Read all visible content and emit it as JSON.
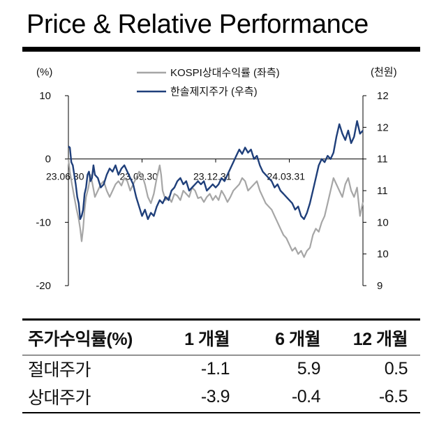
{
  "header": {
    "title": "Price & Relative Performance"
  },
  "chart_data": {
    "type": "line",
    "left_axis": {
      "unit": "(%)",
      "range": [
        -20,
        10
      ],
      "ticks": [
        10,
        0,
        -10,
        -20
      ],
      "tick_labels": [
        "10",
        "0",
        "-10",
        "-20"
      ]
    },
    "right_axis": {
      "unit": "(천원)",
      "range": [
        9,
        12
      ],
      "tick_labels": [
        "12",
        "12",
        "11",
        "11",
        "10",
        "10",
        "9"
      ]
    },
    "x_ticks": [
      "23.06.30",
      "23.09.30",
      "23.12.31",
      "24.03.31"
    ],
    "x_tick_positions": [
      0,
      0.25,
      0.5,
      0.75
    ],
    "legend": [
      "KOSPI상대수익률 (좌측)",
      "한솔제지주가 (우측)"
    ],
    "series": [
      {
        "name": "KOSPI상대수익률 (좌측)",
        "axis": "left",
        "color": "#a6a6a6",
        "points": [
          [
            0,
            0
          ],
          [
            0.005,
            -2
          ],
          [
            0.012,
            -4
          ],
          [
            0.02,
            -6
          ],
          [
            0.028,
            -8
          ],
          [
            0.035,
            -9.5
          ],
          [
            0.04,
            -11
          ],
          [
            0.045,
            -13
          ],
          [
            0.05,
            -11
          ],
          [
            0.055,
            -8
          ],
          [
            0.06,
            -6
          ],
          [
            0.068,
            -4.5
          ],
          [
            0.075,
            -2.5
          ],
          [
            0.082,
            -4
          ],
          [
            0.09,
            -6
          ],
          [
            0.1,
            -5
          ],
          [
            0.11,
            -4
          ],
          [
            0.12,
            -3.5
          ],
          [
            0.13,
            -5
          ],
          [
            0.14,
            -6
          ],
          [
            0.15,
            -5
          ],
          [
            0.16,
            -4
          ],
          [
            0.17,
            -3.5
          ],
          [
            0.18,
            -4.2
          ],
          [
            0.19,
            -3
          ],
          [
            0.2,
            -3.5
          ],
          [
            0.21,
            -5
          ],
          [
            0.22,
            -4
          ],
          [
            0.23,
            -3
          ],
          [
            0.24,
            -2
          ],
          [
            0.25,
            -2.5
          ],
          [
            0.26,
            -4
          ],
          [
            0.27,
            -6
          ],
          [
            0.28,
            -7
          ],
          [
            0.29,
            -5.5
          ],
          [
            0.3,
            -3
          ],
          [
            0.31,
            -1
          ],
          [
            0.315,
            -2.5
          ],
          [
            0.32,
            -5
          ],
          [
            0.33,
            -6.5
          ],
          [
            0.34,
            -6
          ],
          [
            0.35,
            -6.8
          ],
          [
            0.36,
            -5.5
          ],
          [
            0.37,
            -5.8
          ],
          [
            0.38,
            -6.5
          ],
          [
            0.39,
            -5
          ],
          [
            0.4,
            -5.5
          ],
          [
            0.41,
            -6
          ],
          [
            0.42,
            -4.5
          ],
          [
            0.43,
            -5
          ],
          [
            0.44,
            -6.2
          ],
          [
            0.45,
            -6
          ],
          [
            0.46,
            -6.8
          ],
          [
            0.47,
            -6
          ],
          [
            0.48,
            -5.5
          ],
          [
            0.49,
            -6.5
          ],
          [
            0.5,
            -5.8
          ],
          [
            0.51,
            -6.5
          ],
          [
            0.52,
            -5
          ],
          [
            0.53,
            -5.8
          ],
          [
            0.54,
            -6.8
          ],
          [
            0.55,
            -6
          ],
          [
            0.56,
            -5
          ],
          [
            0.57,
            -4.5
          ],
          [
            0.58,
            -4
          ],
          [
            0.59,
            -3
          ],
          [
            0.6,
            -3.5
          ],
          [
            0.61,
            -5
          ],
          [
            0.62,
            -4.5
          ],
          [
            0.63,
            -4
          ],
          [
            0.64,
            -3.5
          ],
          [
            0.65,
            -5
          ],
          [
            0.66,
            -6
          ],
          [
            0.67,
            -7
          ],
          [
            0.68,
            -7.5
          ],
          [
            0.69,
            -8
          ],
          [
            0.7,
            -9
          ],
          [
            0.71,
            -10
          ],
          [
            0.72,
            -11
          ],
          [
            0.73,
            -12
          ],
          [
            0.74,
            -12.5
          ],
          [
            0.75,
            -13.5
          ],
          [
            0.76,
            -14.5
          ],
          [
            0.77,
            -14
          ],
          [
            0.78,
            -15
          ],
          [
            0.79,
            -14.5
          ],
          [
            0.8,
            -15.5
          ],
          [
            0.81,
            -14.5
          ],
          [
            0.82,
            -14
          ],
          [
            0.83,
            -12
          ],
          [
            0.84,
            -11
          ],
          [
            0.85,
            -11.5
          ],
          [
            0.86,
            -10
          ],
          [
            0.87,
            -9
          ],
          [
            0.88,
            -7
          ],
          [
            0.89,
            -5
          ],
          [
            0.9,
            -3
          ],
          [
            0.91,
            -4
          ],
          [
            0.92,
            -5
          ],
          [
            0.93,
            -6
          ],
          [
            0.94,
            -4
          ],
          [
            0.95,
            -3
          ],
          [
            0.96,
            -5
          ],
          [
            0.97,
            -6
          ],
          [
            0.98,
            -4.5
          ],
          [
            0.99,
            -9
          ],
          [
            1,
            -6.8
          ]
        ]
      },
      {
        "name": "한솔제지주가 (우측)",
        "axis": "right",
        "color": "#1f3f7a",
        "points": [
          [
            0,
            11.2
          ],
          [
            0.005,
            11.18
          ],
          [
            0.01,
            10.95
          ],
          [
            0.015,
            10.9
          ],
          [
            0.02,
            10.75
          ],
          [
            0.025,
            10.6
          ],
          [
            0.03,
            10.4
          ],
          [
            0.035,
            10.3
          ],
          [
            0.04,
            10.05
          ],
          [
            0.045,
            10.1
          ],
          [
            0.05,
            10.2
          ],
          [
            0.055,
            10.45
          ],
          [
            0.06,
            10.55
          ],
          [
            0.065,
            10.75
          ],
          [
            0.07,
            10.8
          ],
          [
            0.075,
            10.65
          ],
          [
            0.08,
            10.7
          ],
          [
            0.085,
            10.9
          ],
          [
            0.09,
            10.75
          ],
          [
            0.1,
            10.7
          ],
          [
            0.11,
            10.55
          ],
          [
            0.12,
            10.6
          ],
          [
            0.13,
            10.75
          ],
          [
            0.14,
            10.85
          ],
          [
            0.15,
            10.8
          ],
          [
            0.16,
            10.9
          ],
          [
            0.17,
            10.75
          ],
          [
            0.18,
            10.85
          ],
          [
            0.19,
            10.9
          ],
          [
            0.2,
            10.8
          ],
          [
            0.21,
            10.7
          ],
          [
            0.22,
            10.6
          ],
          [
            0.23,
            10.4
          ],
          [
            0.24,
            10.25
          ],
          [
            0.25,
            10.1
          ],
          [
            0.26,
            10.2
          ],
          [
            0.27,
            10.05
          ],
          [
            0.28,
            10.15
          ],
          [
            0.29,
            10.1
          ],
          [
            0.3,
            10.25
          ],
          [
            0.31,
            10.35
          ],
          [
            0.32,
            10.3
          ],
          [
            0.33,
            10.4
          ],
          [
            0.34,
            10.35
          ],
          [
            0.35,
            10.5
          ],
          [
            0.36,
            10.55
          ],
          [
            0.37,
            10.65
          ],
          [
            0.38,
            10.7
          ],
          [
            0.39,
            10.6
          ],
          [
            0.4,
            10.65
          ],
          [
            0.41,
            10.5
          ],
          [
            0.42,
            10.55
          ],
          [
            0.43,
            10.6
          ],
          [
            0.44,
            10.65
          ],
          [
            0.45,
            10.6
          ],
          [
            0.46,
            10.65
          ],
          [
            0.47,
            10.5
          ],
          [
            0.48,
            10.55
          ],
          [
            0.49,
            10.6
          ],
          [
            0.5,
            10.55
          ],
          [
            0.51,
            10.6
          ],
          [
            0.52,
            10.7
          ],
          [
            0.53,
            10.65
          ],
          [
            0.54,
            10.75
          ],
          [
            0.55,
            10.85
          ],
          [
            0.56,
            10.95
          ],
          [
            0.57,
            11.05
          ],
          [
            0.58,
            11.15
          ],
          [
            0.59,
            11.08
          ],
          [
            0.6,
            11.18
          ],
          [
            0.61,
            11.1
          ],
          [
            0.62,
            11.15
          ],
          [
            0.63,
            11.0
          ],
          [
            0.64,
            11.05
          ],
          [
            0.65,
            10.9
          ],
          [
            0.66,
            10.8
          ],
          [
            0.67,
            10.75
          ],
          [
            0.68,
            10.7
          ],
          [
            0.69,
            10.65
          ],
          [
            0.7,
            10.55
          ],
          [
            0.71,
            10.6
          ],
          [
            0.72,
            10.5
          ],
          [
            0.73,
            10.45
          ],
          [
            0.74,
            10.4
          ],
          [
            0.75,
            10.35
          ],
          [
            0.76,
            10.3
          ],
          [
            0.77,
            10.2
          ],
          [
            0.78,
            10.25
          ],
          [
            0.79,
            10.1
          ],
          [
            0.8,
            10.05
          ],
          [
            0.81,
            10.15
          ],
          [
            0.82,
            10.3
          ],
          [
            0.83,
            10.5
          ],
          [
            0.84,
            10.7
          ],
          [
            0.85,
            10.9
          ],
          [
            0.86,
            11.0
          ],
          [
            0.87,
            10.95
          ],
          [
            0.88,
            11.05
          ],
          [
            0.89,
            11.0
          ],
          [
            0.9,
            11.1
          ],
          [
            0.91,
            11.35
          ],
          [
            0.92,
            11.55
          ],
          [
            0.93,
            11.4
          ],
          [
            0.94,
            11.3
          ],
          [
            0.95,
            11.45
          ],
          [
            0.96,
            11.25
          ],
          [
            0.97,
            11.35
          ],
          [
            0.98,
            11.6
          ],
          [
            0.99,
            11.4
          ],
          [
            1,
            11.45
          ]
        ]
      }
    ]
  },
  "returns_table": {
    "headers": [
      "주가수익률(%)",
      "1 개월",
      "6 개월",
      "12 개월"
    ],
    "rows": [
      [
        "절대주가",
        "-1.1",
        "5.9",
        "0.5"
      ],
      [
        "상대주가",
        "-3.9",
        "-0.4",
        "-6.5"
      ]
    ]
  }
}
